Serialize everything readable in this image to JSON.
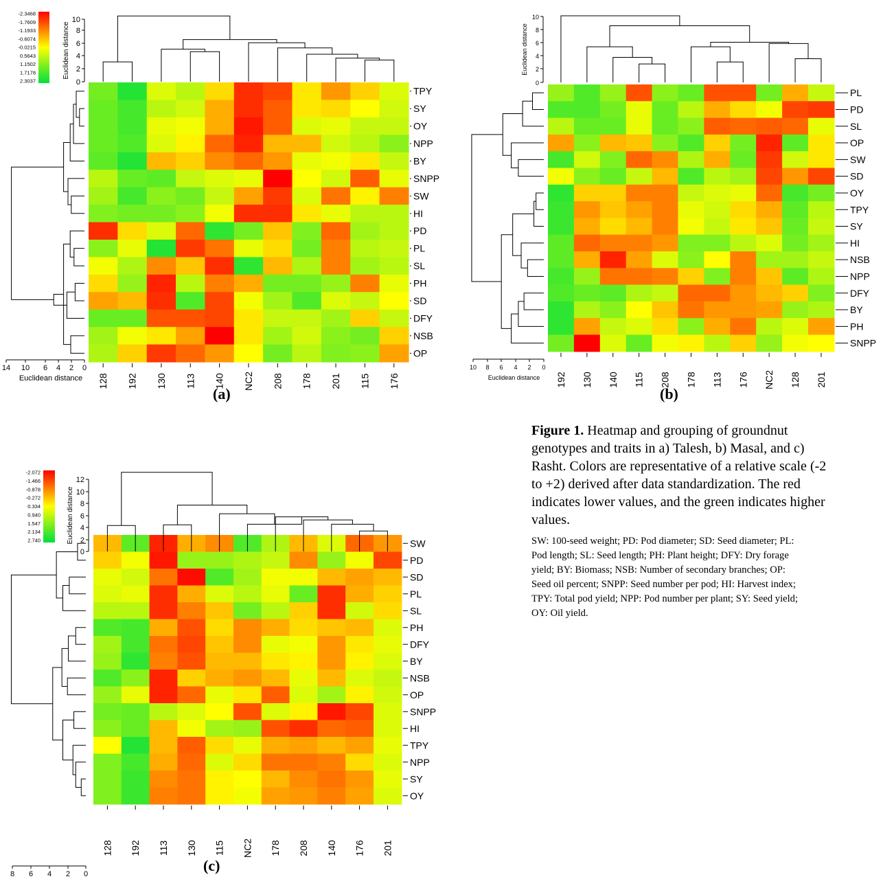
{
  "caption": {
    "figure_number": "Figure 1.",
    "main_lines": [
      "Heatmap and grouping of groundnut",
      "genotypes and traits in a) Talesh, b) Masal, and c)",
      "Rasht. Colors are representative of a relative scale (-2",
      "to +2) derived after data standardization. The red",
      "indicates lower values, and the green indicates higher",
      "values."
    ],
    "abbreviation_lines": [
      "SW: 100-seed weight; PD: Pod diameter; SD: Seed diameter; PL:",
      "Pod length; SL: Seed length; PH: Plant height; DFY: Dry forage",
      "yield; BY: Biomass; NSB: Number of secondary branches; OP:",
      "Seed oil percent; SNPP: Seed number per pod; HI: Harvest index;",
      "TPY: Total pod yield; NPP: Pod number per plant; SY: Seed yield;",
      "OY: Oil yield."
    ]
  },
  "colors": {
    "high": "#00e03c",
    "mid": "#ffff00",
    "low": "#ff0000"
  },
  "chart_data": [
    {
      "type": "heatmap",
      "panel_label": "(a)",
      "colorbar_ticks": [
        "-2.3468",
        "-1.7609",
        "-1.1933",
        "-0.6074",
        "-0.0215",
        "0.5643",
        "1.1502",
        "1.7178",
        "2.3037"
      ],
      "top_axis_label": "Euclidean distance",
      "top_axis_ticks": [
        "0",
        "2",
        "4",
        "6",
        "8",
        "10"
      ],
      "left_axis_label": "Euclidean distance",
      "left_axis_ticks": [
        "14",
        "10",
        "6",
        "4",
        "2",
        "0"
      ],
      "columns": [
        "128",
        "192",
        "130",
        "113",
        "140",
        "NC2",
        "208",
        "178",
        "201",
        "115",
        "176"
      ],
      "rows": [
        "TPY",
        "SY",
        "OY",
        "NPP",
        "BY",
        "SNPP",
        "SW",
        "HI",
        "PD",
        "PL",
        "SL",
        "PH",
        "SD",
        "DFY",
        "NSB",
        "OP"
      ],
      "values": [
        [
          1.2,
          1.9,
          0.3,
          0.6,
          -0.3,
          -1.8,
          -1.6,
          -0.2,
          -0.9,
          -0.4,
          0.3
        ],
        [
          1.3,
          1.6,
          0.6,
          0.4,
          -0.7,
          -1.8,
          -1.4,
          -0.2,
          -0.3,
          0.0,
          0.4
        ],
        [
          1.3,
          1.6,
          0.2,
          0.1,
          -0.7,
          -2.0,
          -1.4,
          0.3,
          0.2,
          0.5,
          0.5
        ],
        [
          1.3,
          1.5,
          0.3,
          -0.1,
          -1.3,
          -1.9,
          -0.6,
          -0.6,
          0.4,
          0.6,
          1.0
        ],
        [
          1.4,
          1.9,
          -0.6,
          -0.4,
          -1.0,
          -1.3,
          -0.9,
          0.2,
          0.1,
          -0.2,
          0.5
        ],
        [
          0.6,
          1.3,
          1.4,
          0.5,
          0.3,
          0.2,
          -2.2,
          0.0,
          0.4,
          -1.4,
          0.2
        ],
        [
          0.8,
          1.6,
          1.0,
          1.2,
          0.5,
          -0.8,
          -1.7,
          0.3,
          -1.2,
          -0.1,
          -1.1
        ],
        [
          1.1,
          1.2,
          1.2,
          1.0,
          0.1,
          -1.8,
          -1.8,
          -0.2,
          0.2,
          0.6,
          0.6
        ],
        [
          -1.8,
          -0.3,
          0.3,
          -1.3,
          1.8,
          1.2,
          -0.5,
          1.1,
          -1.3,
          0.8,
          0.6
        ],
        [
          1.0,
          0.2,
          1.9,
          -1.7,
          -1.2,
          0.2,
          -0.3,
          1.2,
          -1.1,
          0.6,
          0.5
        ],
        [
          0.1,
          0.7,
          -1.0,
          -0.5,
          -1.8,
          1.8,
          -0.6,
          0.7,
          -1.1,
          0.8,
          0.6
        ],
        [
          -0.3,
          0.9,
          -1.9,
          0.6,
          -1.1,
          -0.7,
          1.2,
          1.2,
          0.9,
          -1.1,
          0.2
        ],
        [
          -0.8,
          -0.6,
          -1.8,
          1.5,
          -1.6,
          0.1,
          0.8,
          1.5,
          0.3,
          0.5,
          0.0
        ],
        [
          1.3,
          1.3,
          -1.5,
          -1.5,
          -1.6,
          -0.2,
          0.5,
          0.5,
          0.8,
          -0.4,
          0.5
        ],
        [
          0.8,
          0.1,
          -0.2,
          -0.8,
          -2.2,
          -0.2,
          0.8,
          0.4,
          1.0,
          1.2,
          -0.4
        ],
        [
          0.7,
          -0.4,
          -1.7,
          -1.3,
          -0.9,
          0.0,
          1.2,
          0.6,
          1.1,
          1.0,
          -0.8
        ]
      ]
    },
    {
      "type": "heatmap",
      "panel_label": "(b)",
      "top_axis_label": "Euclidean distance",
      "top_axis_ticks": [
        "0",
        "2",
        "4",
        "6",
        "8",
        "10"
      ],
      "left_axis_label": "Euclidean distance",
      "left_axis_ticks": [
        "10",
        "8",
        "6",
        "4",
        "2",
        "0"
      ],
      "columns": [
        "192",
        "130",
        "140",
        "115",
        "208",
        "178",
        "113",
        "176",
        "NC2",
        "128",
        "201"
      ],
      "rows": [
        "PL",
        "PD",
        "SL",
        "OP",
        "SW",
        "SD",
        "OY",
        "TPY",
        "SY",
        "HI",
        "NSB",
        "NPP",
        "DFY",
        "BY",
        "PH",
        "SNPP"
      ],
      "values": [
        [
          0.9,
          1.5,
          0.9,
          -1.5,
          1.0,
          1.3,
          -1.5,
          -1.5,
          1.2,
          -0.7,
          0.5
        ],
        [
          1.5,
          1.5,
          1.2,
          0.2,
          1.3,
          0.6,
          -0.7,
          -0.3,
          0.1,
          -1.6,
          -1.7
        ],
        [
          0.6,
          1.3,
          1.3,
          0.2,
          1.3,
          1.0,
          -1.4,
          -1.3,
          -1.4,
          -1.3,
          0.2
        ],
        [
          -0.8,
          1.0,
          -0.6,
          -0.5,
          1.0,
          1.5,
          -0.4,
          1.2,
          -1.9,
          1.4,
          -0.2
        ],
        [
          1.6,
          0.4,
          1.1,
          -1.3,
          -1.0,
          0.7,
          -0.7,
          1.3,
          -1.7,
          0.4,
          -0.2
        ],
        [
          0.1,
          1.0,
          1.3,
          0.5,
          -0.6,
          1.5,
          0.6,
          0.8,
          -1.6,
          -0.9,
          -1.6
        ],
        [
          1.8,
          -0.4,
          -0.4,
          -1.1,
          -1.1,
          0.5,
          0.3,
          0.2,
          -1.3,
          1.6,
          1.2
        ],
        [
          1.7,
          -0.9,
          -0.5,
          -0.8,
          -1.1,
          0.2,
          0.4,
          -0.3,
          -0.7,
          1.4,
          0.6
        ],
        [
          1.7,
          -0.7,
          -0.3,
          -0.6,
          -1.1,
          0.1,
          0.5,
          -0.2,
          -0.5,
          1.3,
          0.5
        ],
        [
          1.4,
          -1.3,
          -1.1,
          -1.1,
          -0.9,
          1.1,
          1.1,
          0.6,
          0.3,
          1.2,
          0.8
        ],
        [
          1.4,
          -0.7,
          -1.9,
          -0.8,
          0.3,
          1.0,
          0.0,
          -1.1,
          0.8,
          0.8,
          0.5
        ],
        [
          1.6,
          0.9,
          -1.2,
          -1.2,
          -1.1,
          -0.4,
          1.1,
          -1.1,
          -0.5,
          1.4,
          0.7
        ],
        [
          1.5,
          1.3,
          1.4,
          0.7,
          0.5,
          -1.3,
          -1.3,
          -0.9,
          -0.6,
          -0.4,
          1.1
        ],
        [
          1.8,
          0.7,
          1.0,
          0.0,
          -0.5,
          -1.2,
          -0.9,
          -0.9,
          -0.8,
          0.9,
          0.7
        ],
        [
          1.8,
          -0.8,
          0.5,
          0.3,
          -0.3,
          1.0,
          -0.7,
          -1.2,
          0.6,
          0.3,
          -0.8
        ],
        [
          1.2,
          -2.2,
          0.3,
          1.3,
          0.1,
          -0.1,
          0.6,
          -0.4,
          0.9,
          0.1,
          0.0
        ]
      ]
    },
    {
      "type": "heatmap",
      "panel_label": "(c)",
      "colorbar_ticks": [
        "-2.072",
        "-1.466",
        "-0.878",
        "-0.272",
        "0.334",
        "0.940",
        "1.547",
        "2.134",
        "2.740"
      ],
      "top_axis_label": "Euclidean distance",
      "top_axis_ticks": [
        "0",
        "2",
        "4",
        "6",
        "8",
        "10",
        "12"
      ],
      "left_axis_label": "Euclidean distance",
      "left_axis_ticks": [
        "8",
        "6",
        "4",
        "2",
        "0"
      ],
      "columns": [
        "128",
        "192",
        "113",
        "130",
        "115",
        "NC2",
        "178",
        "208",
        "140",
        "176",
        "201"
      ],
      "rows": [
        "SW",
        "PD",
        "SD",
        "PL",
        "SL",
        "PH",
        "DFY",
        "BY",
        "NSB",
        "OP",
        "SNPP",
        "HI",
        "TPY",
        "NPP",
        "SY",
        "OY"
      ],
      "values": [
        [
          -0.6,
          1.4,
          -1.9,
          -0.7,
          -1.0,
          1.5,
          0.7,
          -0.6,
          0.3,
          -1.3,
          -0.9
        ],
        [
          -0.4,
          0.1,
          -2.0,
          0.9,
          0.9,
          0.7,
          0.5,
          -1.0,
          0.9,
          0.1,
          -1.6
        ],
        [
          0.2,
          0.4,
          -1.2,
          -2.1,
          1.5,
          0.8,
          0.1,
          0.1,
          -0.6,
          -0.8,
          -0.6
        ],
        [
          0.3,
          0.2,
          -1.8,
          -0.7,
          0.3,
          0.6,
          0.2,
          1.3,
          -1.8,
          -0.7,
          -0.4
        ],
        [
          0.6,
          0.6,
          -1.8,
          -1.1,
          -0.5,
          1.2,
          0.6,
          -0.4,
          -1.8,
          0.4,
          -0.3
        ],
        [
          1.5,
          1.6,
          -0.7,
          -1.5,
          -0.3,
          -1.0,
          -0.7,
          -0.3,
          -0.5,
          -0.6,
          0.3
        ],
        [
          0.8,
          1.6,
          -1.2,
          -1.6,
          -0.5,
          -1.0,
          0.2,
          0.1,
          -0.9,
          -0.2,
          0.2
        ],
        [
          0.9,
          1.8,
          -1.1,
          -1.5,
          -0.6,
          -0.6,
          -0.2,
          -0.1,
          -0.9,
          -0.1,
          0.3
        ],
        [
          1.5,
          1.0,
          -1.9,
          -0.4,
          -0.7,
          -0.9,
          -0.6,
          0.2,
          -0.6,
          0.3,
          0.5
        ],
        [
          0.9,
          0.2,
          -1.9,
          -1.3,
          0.2,
          -0.2,
          -1.4,
          0.3,
          0.8,
          -0.1,
          0.4
        ],
        [
          1.2,
          1.3,
          0.6,
          0.3,
          0.0,
          -1.5,
          0.3,
          -0.1,
          -2.0,
          -1.6,
          0.3
        ],
        [
          1.0,
          1.3,
          -0.6,
          0.1,
          0.8,
          0.9,
          -1.5,
          -1.8,
          -1.3,
          -1.4,
          0.3
        ],
        [
          0.0,
          1.9,
          -0.6,
          -1.4,
          -0.3,
          0.2,
          -0.7,
          -0.8,
          -0.6,
          -0.8,
          0.2
        ],
        [
          1.1,
          1.6,
          -0.7,
          -1.3,
          0.3,
          -0.3,
          -1.2,
          -1.2,
          -1.1,
          -0.3,
          0.3
        ],
        [
          1.1,
          1.7,
          -1.0,
          -1.2,
          -0.1,
          0.0,
          -0.6,
          -1.0,
          -1.2,
          -0.9,
          0.2
        ],
        [
          1.1,
          1.7,
          -1.1,
          -1.2,
          -0.1,
          0.1,
          -0.8,
          -0.9,
          -1.1,
          -0.8,
          0.3
        ]
      ]
    }
  ]
}
